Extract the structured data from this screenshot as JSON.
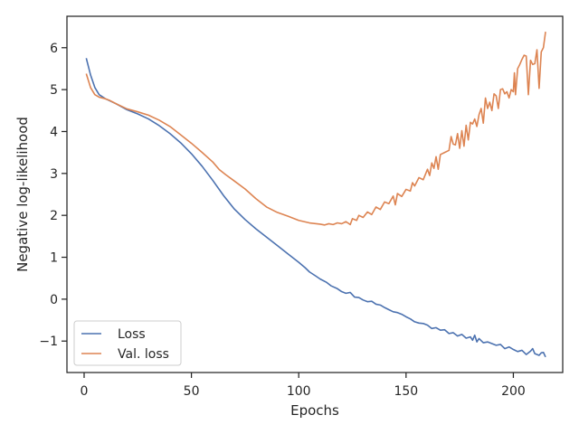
{
  "chart_data": {
    "type": "line",
    "xlabel": "Epochs",
    "ylabel": "Negative log-likelihood",
    "xlim": [
      -8,
      223
    ],
    "ylim": [
      -1.75,
      6.75
    ],
    "x_ticks": [
      0,
      50,
      100,
      150,
      200
    ],
    "y_ticks": [
      -1,
      0,
      1,
      2,
      3,
      4,
      5,
      6
    ],
    "y_tick_labels": [
      "−1",
      "0",
      "1",
      "2",
      "3",
      "4",
      "5",
      "6"
    ],
    "grid": false,
    "legend_position": "lower-left",
    "series": [
      {
        "name": "Loss",
        "color": "#4c72b0",
        "points": [
          [
            1,
            5.75
          ],
          [
            3,
            5.35
          ],
          [
            5,
            5.05
          ],
          [
            7,
            4.88
          ],
          [
            10,
            4.78
          ],
          [
            15,
            4.66
          ],
          [
            20,
            4.52
          ],
          [
            25,
            4.42
          ],
          [
            30,
            4.3
          ],
          [
            35,
            4.14
          ],
          [
            40,
            3.95
          ],
          [
            45,
            3.73
          ],
          [
            50,
            3.47
          ],
          [
            55,
            3.17
          ],
          [
            60,
            2.83
          ],
          [
            65,
            2.47
          ],
          [
            70,
            2.15
          ],
          [
            75,
            1.9
          ],
          [
            80,
            1.68
          ],
          [
            85,
            1.48
          ],
          [
            90,
            1.28
          ],
          [
            95,
            1.08
          ],
          [
            100,
            0.88
          ],
          [
            103,
            0.75
          ],
          [
            105,
            0.65
          ],
          [
            108,
            0.55
          ],
          [
            110,
            0.48
          ],
          [
            113,
            0.4
          ],
          [
            115,
            0.32
          ],
          [
            118,
            0.25
          ],
          [
            120,
            0.18
          ],
          [
            122,
            0.14
          ],
          [
            124,
            0.16
          ],
          [
            126,
            0.05
          ],
          [
            128,
            0.04
          ],
          [
            130,
            -0.02
          ],
          [
            132,
            -0.06
          ],
          [
            134,
            -0.05
          ],
          [
            136,
            -0.12
          ],
          [
            138,
            -0.14
          ],
          [
            140,
            -0.2
          ],
          [
            142,
            -0.25
          ],
          [
            144,
            -0.3
          ],
          [
            146,
            -0.32
          ],
          [
            148,
            -0.36
          ],
          [
            150,
            -0.42
          ],
          [
            152,
            -0.47
          ],
          [
            154,
            -0.54
          ],
          [
            156,
            -0.57
          ],
          [
            158,
            -0.58
          ],
          [
            160,
            -0.62
          ],
          [
            162,
            -0.7
          ],
          [
            164,
            -0.68
          ],
          [
            166,
            -0.74
          ],
          [
            168,
            -0.73
          ],
          [
            170,
            -0.82
          ],
          [
            172,
            -0.8
          ],
          [
            174,
            -0.88
          ],
          [
            176,
            -0.84
          ],
          [
            178,
            -0.93
          ],
          [
            180,
            -0.9
          ],
          [
            181,
            -0.98
          ],
          [
            182,
            -0.86
          ],
          [
            183,
            -1.02
          ],
          [
            184,
            -0.94
          ],
          [
            186,
            -1.04
          ],
          [
            188,
            -1.02
          ],
          [
            190,
            -1.06
          ],
          [
            192,
            -1.1
          ],
          [
            194,
            -1.08
          ],
          [
            196,
            -1.18
          ],
          [
            198,
            -1.14
          ],
          [
            200,
            -1.2
          ],
          [
            202,
            -1.25
          ],
          [
            204,
            -1.22
          ],
          [
            206,
            -1.32
          ],
          [
            208,
            -1.24
          ],
          [
            209,
            -1.18
          ],
          [
            210,
            -1.3
          ],
          [
            212,
            -1.34
          ],
          [
            213,
            -1.28
          ],
          [
            214,
            -1.27
          ],
          [
            215,
            -1.38
          ]
        ]
      },
      {
        "name": "Val. loss",
        "color": "#dd8452",
        "points": [
          [
            1,
            5.38
          ],
          [
            3,
            5.05
          ],
          [
            5,
            4.88
          ],
          [
            7,
            4.82
          ],
          [
            10,
            4.78
          ],
          [
            12,
            4.74
          ],
          [
            15,
            4.66
          ],
          [
            20,
            4.54
          ],
          [
            25,
            4.47
          ],
          [
            30,
            4.39
          ],
          [
            35,
            4.27
          ],
          [
            40,
            4.12
          ],
          [
            45,
            3.92
          ],
          [
            50,
            3.72
          ],
          [
            55,
            3.5
          ],
          [
            60,
            3.27
          ],
          [
            63,
            3.09
          ],
          [
            66,
            2.97
          ],
          [
            70,
            2.82
          ],
          [
            75,
            2.63
          ],
          [
            80,
            2.4
          ],
          [
            85,
            2.2
          ],
          [
            90,
            2.07
          ],
          [
            95,
            1.98
          ],
          [
            100,
            1.88
          ],
          [
            105,
            1.82
          ],
          [
            110,
            1.79
          ],
          [
            112,
            1.77
          ],
          [
            114,
            1.8
          ],
          [
            116,
            1.78
          ],
          [
            118,
            1.82
          ],
          [
            120,
            1.8
          ],
          [
            122,
            1.85
          ],
          [
            124,
            1.78
          ],
          [
            125,
            1.92
          ],
          [
            127,
            1.88
          ],
          [
            128,
            2.0
          ],
          [
            130,
            1.95
          ],
          [
            132,
            2.08
          ],
          [
            134,
            2.02
          ],
          [
            136,
            2.2
          ],
          [
            138,
            2.14
          ],
          [
            140,
            2.32
          ],
          [
            142,
            2.28
          ],
          [
            144,
            2.46
          ],
          [
            145,
            2.25
          ],
          [
            146,
            2.52
          ],
          [
            148,
            2.45
          ],
          [
            150,
            2.62
          ],
          [
            152,
            2.58
          ],
          [
            153,
            2.78
          ],
          [
            154,
            2.7
          ],
          [
            156,
            2.9
          ],
          [
            158,
            2.85
          ],
          [
            160,
            3.1
          ],
          [
            161,
            2.95
          ],
          [
            162,
            3.25
          ],
          [
            163,
            3.12
          ],
          [
            164,
            3.4
          ],
          [
            165,
            3.1
          ],
          [
            166,
            3.45
          ],
          [
            168,
            3.5
          ],
          [
            170,
            3.55
          ],
          [
            171,
            3.88
          ],
          [
            172,
            3.7
          ],
          [
            173,
            3.68
          ],
          [
            174,
            3.95
          ],
          [
            175,
            3.6
          ],
          [
            176,
            4.02
          ],
          [
            177,
            3.65
          ],
          [
            178,
            4.15
          ],
          [
            179,
            3.8
          ],
          [
            180,
            4.22
          ],
          [
            181,
            4.18
          ],
          [
            182,
            4.3
          ],
          [
            183,
            4.12
          ],
          [
            184,
            4.4
          ],
          [
            185,
            4.55
          ],
          [
            186,
            4.2
          ],
          [
            187,
            4.8
          ],
          [
            188,
            4.55
          ],
          [
            189,
            4.7
          ],
          [
            190,
            4.5
          ],
          [
            191,
            4.9
          ],
          [
            192,
            4.85
          ],
          [
            193,
            4.55
          ],
          [
            194,
            5.0
          ],
          [
            195,
            5.02
          ],
          [
            196,
            4.9
          ],
          [
            197,
            4.95
          ],
          [
            198,
            4.8
          ],
          [
            199,
            5.0
          ],
          [
            200,
            4.95
          ],
          [
            200.5,
            5.4
          ],
          [
            201,
            4.88
          ],
          [
            202,
            5.5
          ],
          [
            203,
            5.6
          ],
          [
            204,
            5.72
          ],
          [
            205,
            5.82
          ],
          [
            206,
            5.8
          ],
          [
            207,
            4.88
          ],
          [
            208,
            5.7
          ],
          [
            209,
            5.6
          ],
          [
            210,
            5.62
          ],
          [
            211,
            5.95
          ],
          [
            212,
            5.03
          ],
          [
            213,
            5.9
          ],
          [
            214,
            6.0
          ],
          [
            215,
            6.38
          ]
        ]
      }
    ]
  }
}
